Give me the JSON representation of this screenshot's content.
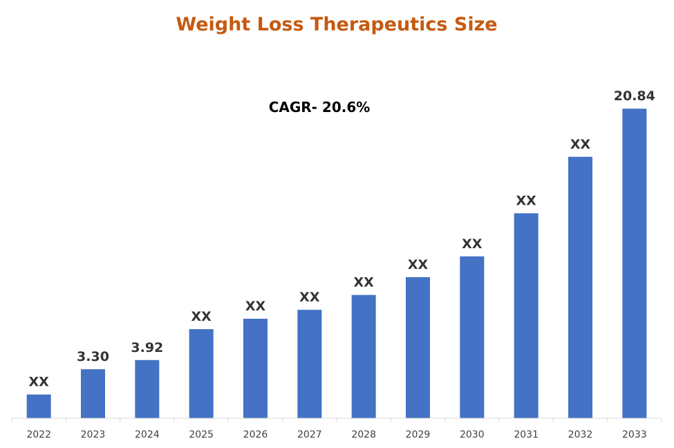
{
  "chart_data": {
    "type": "bar",
    "title": "Weight Loss Therapeutics Size",
    "annotation": "CAGR- 20.6%",
    "xlabel": "",
    "ylabel": "",
    "categories": [
      "2022",
      "2023",
      "2024",
      "2025",
      "2026",
      "2027",
      "2028",
      "2029",
      "2030",
      "2031",
      "2032",
      "2033"
    ],
    "values": [
      1.6,
      3.3,
      3.92,
      6.0,
      6.7,
      7.3,
      8.3,
      9.5,
      10.9,
      13.8,
      17.6,
      20.84
    ],
    "data_labels": [
      "XX",
      "3.30",
      "3.92",
      "XX",
      "XX",
      "XX",
      "XX",
      "XX",
      "XX",
      "XX",
      "XX",
      "20.84"
    ],
    "ylim": [
      0,
      21.5
    ],
    "grid": false,
    "legend": "none",
    "bar_color": "#4472C4",
    "title_color": "#C55A11"
  }
}
